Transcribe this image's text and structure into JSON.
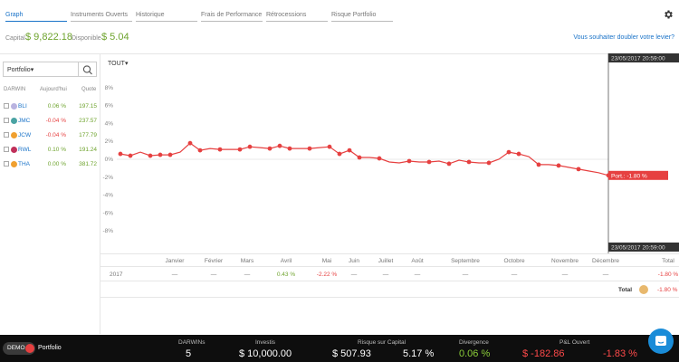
{
  "tabs": [
    "Graph",
    "Instruments Ouverts",
    "Historique",
    "Frais de Performance",
    "Rétrocessions",
    "Risque Portfolio"
  ],
  "capital": {
    "capital_label": "Capital",
    "capital_value": "$ 9,822.18",
    "disponible_label": "Disponible",
    "disponible_value": "$ 5.04"
  },
  "leverage_link": "Vous souhaiter doubler votre levier?",
  "left_panel": {
    "select_value": "Portfolio",
    "headers": {
      "darwin": "DARWIN",
      "today": "Aujourd'hui",
      "quote": "Quote"
    },
    "rows": [
      {
        "name": "BLI",
        "pct": "0.06 %",
        "quote": "197.15",
        "color": "#b9b3e0",
        "pct_color": "#6ea32d"
      },
      {
        "name": "JMC",
        "pct": "-0.04 %",
        "quote": "237.57",
        "color": "#4aa3a3",
        "pct_color": "#e64040"
      },
      {
        "name": "JCW",
        "pct": "-0.04 %",
        "quote": "177.79",
        "color": "#f0a030",
        "pct_color": "#e64040"
      },
      {
        "name": "RWL",
        "pct": "0.10 %",
        "quote": "191.24",
        "color": "#c0305a",
        "pct_color": "#6ea32d"
      },
      {
        "name": "THA",
        "pct": "0.00 %",
        "quote": "381.72",
        "color": "#f0a030",
        "pct_color": "#6ea32d"
      }
    ]
  },
  "chart": {
    "period": "TOUT",
    "date_top": "23/05/2017 20:59:00",
    "date_bottom": "23/05/2017 20:59:00",
    "last_label": "Port.: -1.80 %"
  },
  "chart_data": {
    "type": "line",
    "yticks": [
      "8%",
      "6%",
      "4%",
      "2%",
      "0%",
      "-2%",
      "-4%",
      "-6%",
      "-8%"
    ],
    "ylim": [
      -9,
      9
    ],
    "series": [
      {
        "values": [
          0.6,
          0.4,
          0.8,
          0.4,
          0.5,
          0.5,
          0.8,
          1.8,
          1.0,
          1.2,
          1.1,
          1.1,
          1.1,
          1.4,
          1.3,
          1.2,
          1.5,
          1.2,
          1.2,
          1.2,
          1.3,
          1.4,
          0.6,
          1.0,
          0.2,
          0.2,
          0.1,
          -0.3,
          -0.4,
          -0.2,
          -0.3,
          -0.3,
          -0.2,
          -0.5,
          -0.1,
          -0.3,
          -0.4,
          -0.4,
          0.0,
          0.8,
          0.6,
          0.3,
          -0.6,
          -0.6,
          -0.7,
          -0.9,
          -1.1,
          -1.3,
          -1.5,
          -1.8
        ]
      }
    ],
    "markers": [
      0,
      1,
      3,
      4,
      5,
      7,
      8,
      10,
      12,
      13,
      15,
      16,
      17,
      19,
      21,
      22,
      23,
      24,
      26,
      29,
      31,
      33,
      35,
      37,
      39,
      40,
      42,
      44,
      46,
      49
    ]
  },
  "months": [
    "Janvier",
    "Février",
    "Mars",
    "Avril",
    "Mai",
    "Juin",
    "Juillet",
    "Août",
    "Septembre",
    "Octobre",
    "Novembre",
    "Décembre",
    "Total"
  ],
  "year_row": {
    "year": "2017",
    "cells": [
      "—",
      "—",
      "—",
      "0.43 %",
      "-2.22 %",
      "—",
      "—",
      "—",
      "—",
      "—",
      "—",
      "—",
      "-1.80 %"
    ]
  },
  "total_row": {
    "label": "Total",
    "value": "-1.80 %"
  },
  "footer": {
    "demo": "DEMO",
    "portfolio": "Portfolio",
    "stats": [
      {
        "label": "DARWINs",
        "value": "5",
        "color": "#ffffff"
      },
      {
        "label": "Investis",
        "value": "$ 10,000.00",
        "color": "#ffffff"
      },
      {
        "label": "Risque sur Capital",
        "value": "$ 507.93",
        "color": "#ffffff"
      },
      {
        "label": "",
        "value": "5.17 %",
        "color": "#ffffff"
      },
      {
        "label": "Divergence",
        "value": "0.06 %",
        "color": "#8ccf3a"
      },
      {
        "label": "P&L Ouvert",
        "value": "$ -182.86",
        "color": "#ff4a4a"
      },
      {
        "label": "",
        "value": "-1.83 %",
        "color": "#ff4a4a"
      }
    ]
  }
}
